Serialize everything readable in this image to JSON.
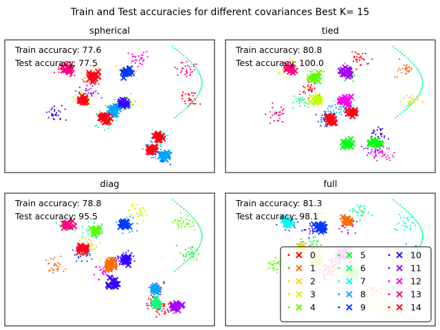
{
  "figure": {
    "suptitle": "Train and Test accuracies for different covariances Best K= 15"
  },
  "palette": [
    "#ff0000",
    "#ff6d00",
    "#ffd400",
    "#c3ff00",
    "#5bff00",
    "#00ff12",
    "#00ff82",
    "#00ffef",
    "#00a5ff",
    "#0038ff",
    "#3500ff",
    "#a200ff",
    "#ff00ef",
    "#ff0082",
    "#ff0015"
  ],
  "chart_data": [
    {
      "type": "scatter",
      "title": "spherical",
      "annotations": [
        "Train accuracy: 77.6",
        "Test accuracy: 77.5"
      ],
      "grid": false,
      "xticks": false,
      "yticks": false,
      "markers": [
        {
          "cluster": 13,
          "x": 0.3,
          "y": 0.78
        },
        {
          "cluster": 14,
          "x": 0.42,
          "y": 0.72
        },
        {
          "cluster": 9,
          "x": 0.58,
          "y": 0.76
        },
        {
          "cluster": 14,
          "x": 0.37,
          "y": 0.55
        },
        {
          "cluster": 10,
          "x": 0.57,
          "y": 0.52
        },
        {
          "cluster": 8,
          "x": 0.52,
          "y": 0.47
        },
        {
          "cluster": 14,
          "x": 0.48,
          "y": 0.4
        },
        {
          "cluster": 14,
          "x": 0.73,
          "y": 0.27
        },
        {
          "cluster": 14,
          "x": 0.7,
          "y": 0.18
        },
        {
          "cluster": 8,
          "x": 0.76,
          "y": 0.13
        }
      ]
    },
    {
      "type": "scatter",
      "title": "tied",
      "annotations": [
        "Train accuracy: 80.8",
        "Test accuracy: 100.0"
      ],
      "grid": false,
      "xticks": false,
      "yticks": false,
      "markers": [
        {
          "cluster": 13,
          "x": 0.3,
          "y": 0.78
        },
        {
          "cluster": 4,
          "x": 0.43,
          "y": 0.72
        },
        {
          "cluster": 11,
          "x": 0.58,
          "y": 0.76
        },
        {
          "cluster": 12,
          "x": 0.57,
          "y": 0.54
        },
        {
          "cluster": 14,
          "x": 0.6,
          "y": 0.46
        },
        {
          "cluster": 14,
          "x": 0.5,
          "y": 0.4
        },
        {
          "cluster": 5,
          "x": 0.72,
          "y": 0.22
        },
        {
          "cluster": 5,
          "x": 0.58,
          "y": 0.22
        },
        {
          "cluster": 3,
          "x": 0.43,
          "y": 0.55
        }
      ]
    },
    {
      "type": "scatter",
      "title": "diag",
      "annotations": [
        "Train accuracy: 78.8",
        "Test accuracy: 95.5"
      ],
      "grid": false,
      "xticks": false,
      "yticks": false,
      "markers": [
        {
          "cluster": 13,
          "x": 0.3,
          "y": 0.76
        },
        {
          "cluster": 4,
          "x": 0.44,
          "y": 0.72
        },
        {
          "cluster": 9,
          "x": 0.57,
          "y": 0.77
        },
        {
          "cluster": 14,
          "x": 0.37,
          "y": 0.58
        },
        {
          "cluster": 10,
          "x": 0.58,
          "y": 0.5
        },
        {
          "cluster": 1,
          "x": 0.5,
          "y": 0.46
        },
        {
          "cluster": 8,
          "x": 0.72,
          "y": 0.28
        },
        {
          "cluster": 6,
          "x": 0.72,
          "y": 0.17
        },
        {
          "cluster": 10,
          "x": 0.52,
          "y": 0.32
        },
        {
          "cluster": 11,
          "x": 0.82,
          "y": 0.14
        }
      ]
    },
    {
      "type": "scatter",
      "title": "full",
      "annotations": [
        "Train accuracy: 81.3",
        "Test accuracy: 98.1"
      ],
      "grid": false,
      "xticks": false,
      "yticks": false,
      "markers": [
        {
          "cluster": 7,
          "x": 0.3,
          "y": 0.78
        },
        {
          "cluster": 9,
          "x": 0.45,
          "y": 0.74
        },
        {
          "cluster": 1,
          "x": 0.58,
          "y": 0.8
        },
        {
          "cluster": 2,
          "x": 0.36,
          "y": 0.58
        },
        {
          "cluster": 12,
          "x": 0.56,
          "y": 0.54
        },
        {
          "cluster": 4,
          "x": 0.6,
          "y": 0.4
        },
        {
          "cluster": 3,
          "x": 0.44,
          "y": 0.5
        }
      ]
    }
  ],
  "legend": {
    "placement": "lower right of full panel",
    "labels": [
      "0",
      "1",
      "2",
      "3",
      "4",
      "5",
      "6",
      "7",
      "8",
      "9",
      "10",
      "11",
      "12",
      "13",
      "14"
    ]
  }
}
